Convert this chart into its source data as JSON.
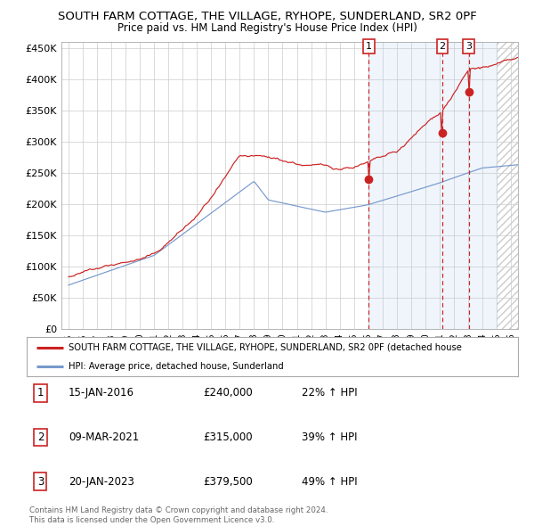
{
  "title": "SOUTH FARM COTTAGE, THE VILLAGE, RYHOPE, SUNDERLAND, SR2 0PF",
  "subtitle": "Price paid vs. HM Land Registry's House Price Index (HPI)",
  "red_label": "SOUTH FARM COTTAGE, THE VILLAGE, RYHOPE, SUNDERLAND, SR2 0PF (detached house",
  "blue_label": "HPI: Average price, detached house, Sunderland",
  "transactions": [
    {
      "num": 1,
      "date": "15-JAN-2016",
      "price": "£240,000",
      "pct": "22% ↑ HPI",
      "year": 2016.04,
      "price_val": 240000
    },
    {
      "num": 2,
      "date": "09-MAR-2021",
      "price": "£315,000",
      "pct": "39% ↑ HPI",
      "year": 2021.19,
      "price_val": 315000
    },
    {
      "num": 3,
      "date": "20-JAN-2023",
      "price": "£379,500",
      "pct": "49% ↑ HPI",
      "year": 2023.05,
      "price_val": 379500
    }
  ],
  "footer1": "Contains HM Land Registry data © Crown copyright and database right 2024.",
  "footer2": "This data is licensed under the Open Government Licence v3.0.",
  "ylim": [
    0,
    460000
  ],
  "xlim_start": 1994.5,
  "xlim_end": 2026.5,
  "red_color": "#cc2222",
  "blue_color": "#7799cc",
  "highlight_color": "#ddeeff",
  "vline_color": "#cc2222",
  "background_color": "#ffffff",
  "grid_color": "#cccccc",
  "hatch_color": "#cccccc"
}
